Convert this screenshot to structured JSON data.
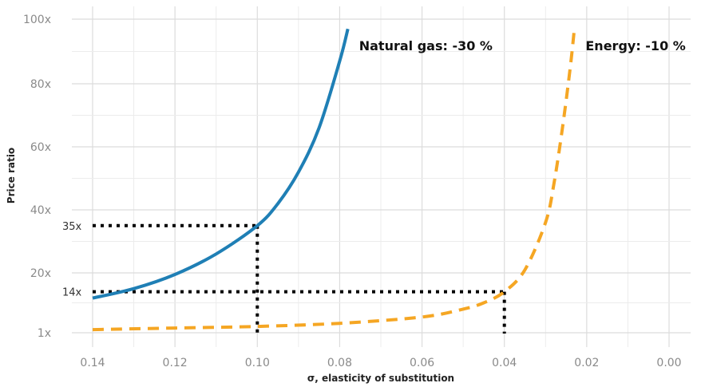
{
  "chart_data": {
    "type": "line",
    "title": "",
    "xlabel": "σ, elasticity of substitution",
    "ylabel": "Price ratio",
    "x_reversed": true,
    "xlim": [
      0.14,
      0.0
    ],
    "ylim": [
      1,
      100
    ],
    "grid": true,
    "x_ticks": [
      0.14,
      0.12,
      0.1,
      0.08,
      0.06,
      0.04,
      0.02,
      0.0
    ],
    "x_tick_labels": [
      "0.14",
      "0.12",
      "0.10",
      "0.08",
      "0.06",
      "0.04",
      "0.02",
      "0.00"
    ],
    "y_ticks": [
      1,
      20,
      40,
      60,
      80,
      100
    ],
    "y_tick_labels": [
      "1x",
      "20x",
      "40x",
      "60x",
      "80x",
      "100x"
    ],
    "series": [
      {
        "name": "Natural gas: -30 %",
        "color": "#1f7fb5",
        "style": "solid",
        "x": [
          0.14,
          0.13,
          0.12,
          0.11,
          0.1,
          0.095,
          0.09,
          0.085,
          0.08,
          0.078
        ],
        "y": [
          12,
          15,
          19.5,
          26,
          35,
          42,
          52,
          66,
          87,
          97
        ]
      },
      {
        "name": "Energy: -10 %",
        "color": "#f5a623",
        "style": "dashed",
        "x": [
          0.14,
          0.12,
          0.1,
          0.08,
          0.06,
          0.05,
          0.045,
          0.04,
          0.035,
          0.03,
          0.028,
          0.026,
          0.024,
          0.023
        ],
        "y": [
          2,
          2.5,
          3,
          4,
          6,
          8.5,
          10.5,
          14,
          21,
          36,
          48,
          65,
          85,
          97
        ]
      }
    ],
    "reference_points": [
      {
        "x": 0.1,
        "y": 35,
        "label": "35x"
      },
      {
        "x": 0.04,
        "y": 14,
        "label": "14x"
      }
    ]
  }
}
